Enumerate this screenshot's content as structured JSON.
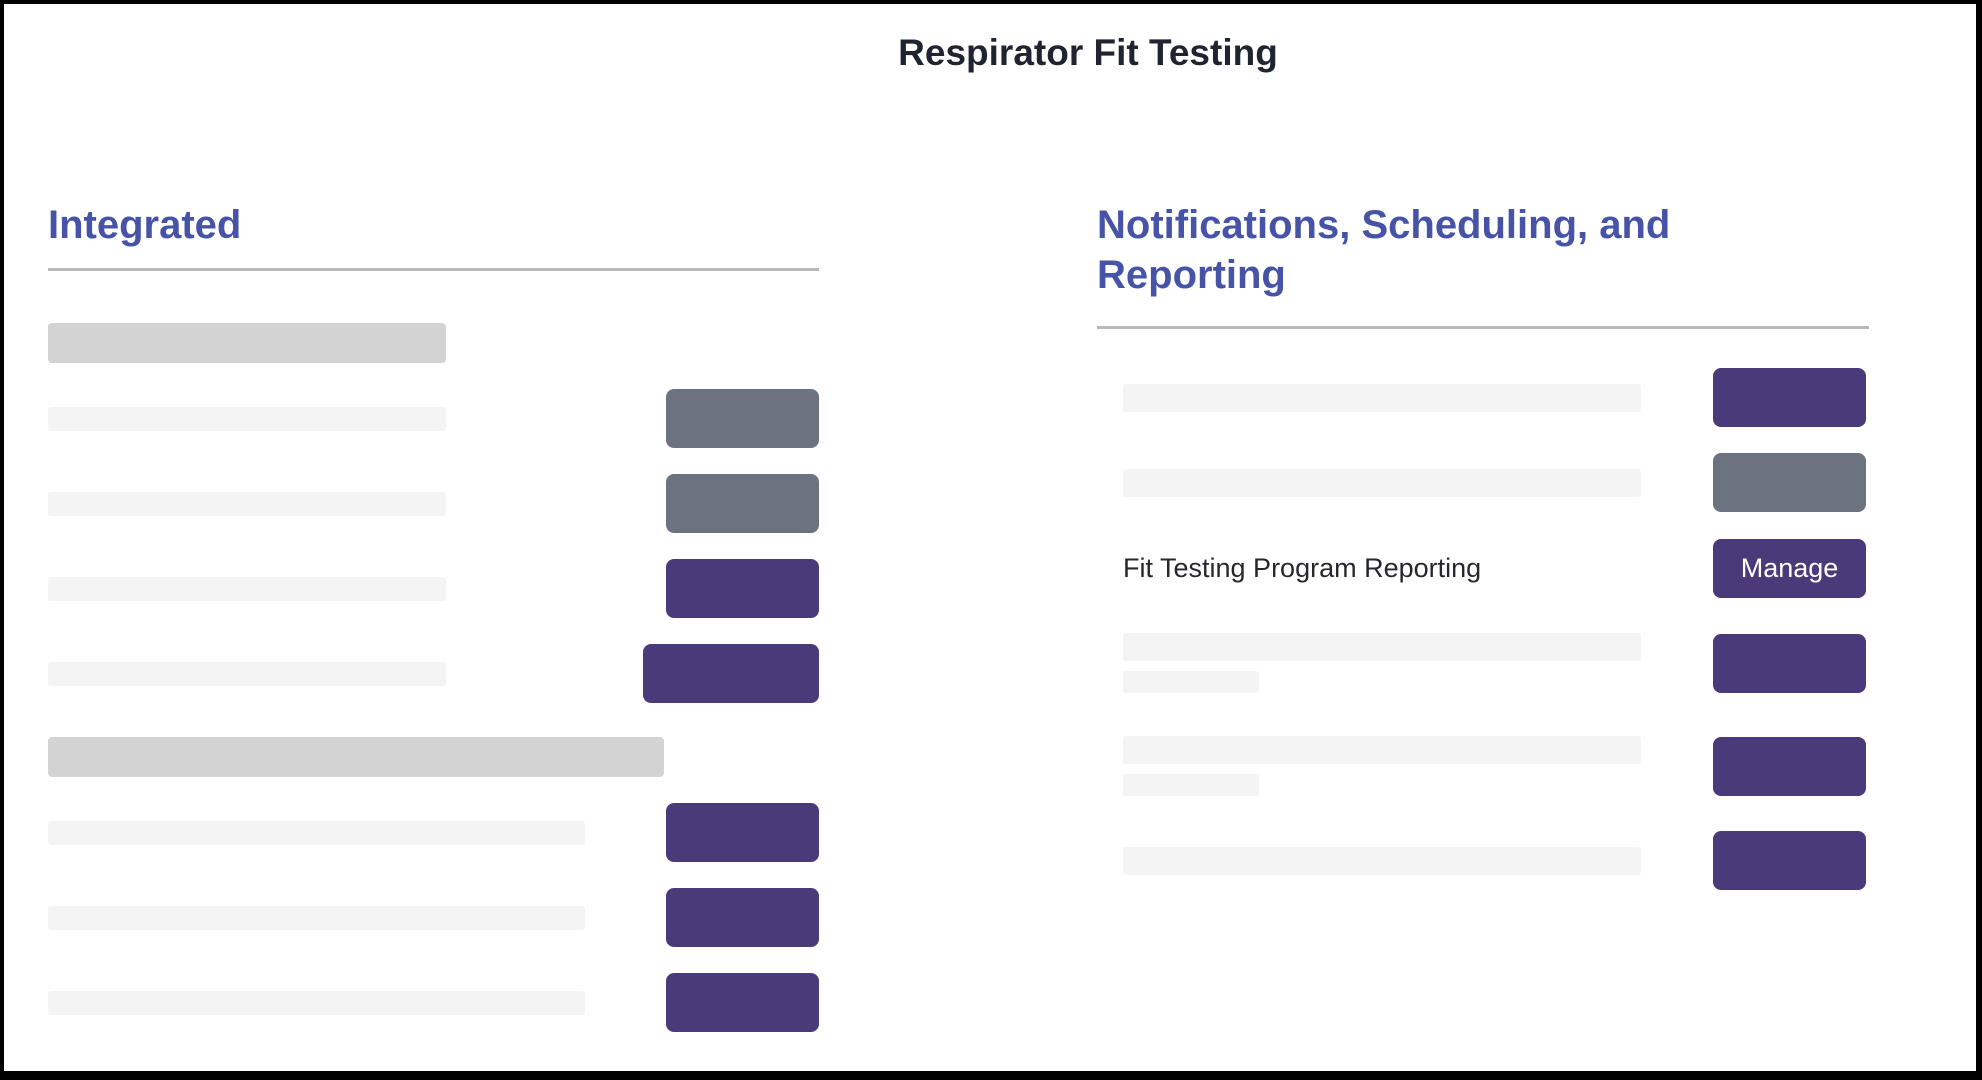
{
  "window": {
    "title": "Respirator Fit Testing"
  },
  "colors": {
    "heading_indigo": "#4653a7",
    "button_purple": "#4b3a7a",
    "button_gray": "#6b7280",
    "skeleton_dark": "#d3d3d4",
    "skeleton_light": "#f4f4f5",
    "divider_gray": "#b9b9b9",
    "title_text": "#1f2430",
    "body_text": "#26282c",
    "frame_border": "#000000"
  },
  "sections": {
    "integrated": {
      "heading": "Integrated"
    },
    "notifications": {
      "heading": "Notifications, Scheduling, and Reporting",
      "reporting_row": {
        "label": "Fit Testing Program Reporting",
        "button_label": "Manage"
      }
    }
  }
}
